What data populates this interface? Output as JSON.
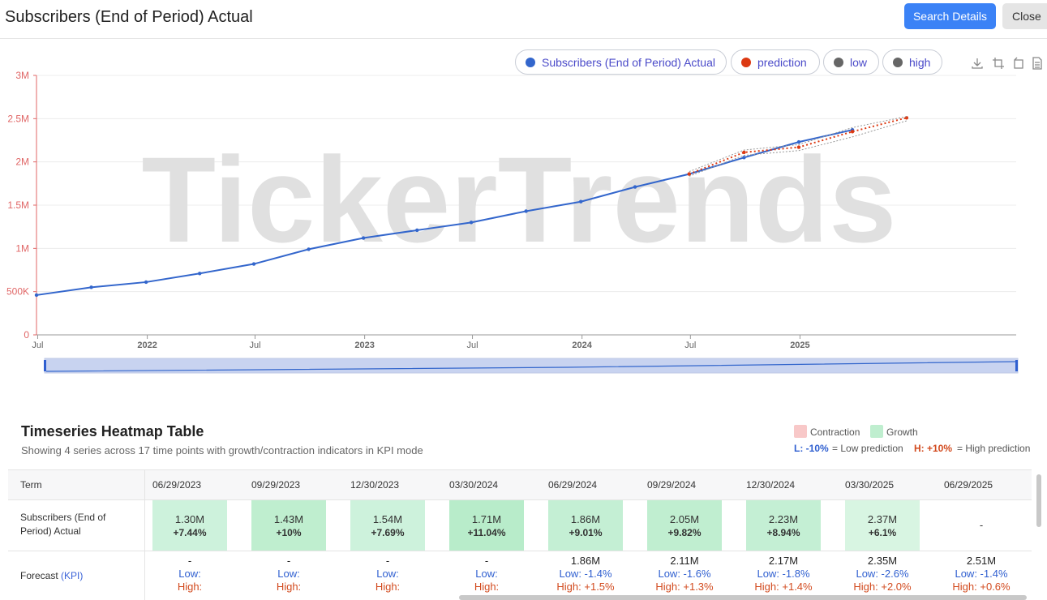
{
  "header": {
    "title": "Subscribers (End of Period) Actual",
    "search_label": "Search Details",
    "close_label": "Close"
  },
  "legend": [
    {
      "label": "Subscribers (End of Period) Actual",
      "color": "#3366cc"
    },
    {
      "label": "prediction",
      "color": "#dc3912"
    },
    {
      "label": "low",
      "color": "#666666"
    },
    {
      "label": "high",
      "color": "#666666"
    }
  ],
  "toolbox": [
    "download-icon",
    "zoom-icon",
    "restore-icon",
    "data-view-icon"
  ],
  "watermark": "TickerTrends",
  "chart_data": {
    "type": "line",
    "y_tick_labels": [
      "0",
      "500K",
      "1M",
      "1.5M",
      "2M",
      "2.5M",
      "3M"
    ],
    "y_ticks": [
      0,
      500000,
      1000000,
      1500000,
      2000000,
      2500000,
      3000000
    ],
    "ylim": [
      0,
      3000000
    ],
    "x_range": [
      "2021-06-29",
      "2025-12-30"
    ],
    "x_tick_labels": [
      {
        "date": "2021-07-01",
        "label": "Jul"
      },
      {
        "date": "2022-01-01",
        "label": "2022"
      },
      {
        "date": "2022-07-01",
        "label": "Jul"
      },
      {
        "date": "2023-01-01",
        "label": "2023"
      },
      {
        "date": "2023-07-01",
        "label": "Jul"
      },
      {
        "date": "2024-01-01",
        "label": "2024"
      },
      {
        "date": "2024-07-01",
        "label": "Jul"
      },
      {
        "date": "2025-01-01",
        "label": "2025"
      }
    ],
    "series": [
      {
        "name": "Subscribers (End of Period) Actual",
        "color": "#3366cc",
        "x": [
          "2021-06-29",
          "2021-09-29",
          "2021-12-30",
          "2022-03-30",
          "2022-06-29",
          "2022-09-29",
          "2022-12-30",
          "2023-03-30",
          "2023-06-29",
          "2023-09-29",
          "2023-12-30",
          "2024-03-30",
          "2024-06-29",
          "2024-09-29",
          "2024-12-30",
          "2025-03-30"
        ],
        "values": [
          460000,
          550000,
          610000,
          710000,
          820000,
          990000,
          1120000,
          1210000,
          1300000,
          1430000,
          1540000,
          1710000,
          1860000,
          2050000,
          2230000,
          2370000
        ]
      },
      {
        "name": "prediction",
        "color": "#dc3912",
        "x": [
          "2024-06-29",
          "2024-09-29",
          "2024-12-30",
          "2025-03-30",
          "2025-06-29"
        ],
        "values": [
          1860000,
          2110000,
          2170000,
          2350000,
          2510000
        ]
      },
      {
        "name": "low",
        "color": "#999999",
        "x": [
          "2024-06-29",
          "2024-09-29",
          "2024-12-30",
          "2025-03-30",
          "2025-06-29"
        ],
        "values": [
          1834000,
          2076000,
          2131000,
          2289000,
          2475000
        ]
      },
      {
        "name": "high",
        "color": "#999999",
        "x": [
          "2024-06-29",
          "2024-09-29",
          "2024-12-30",
          "2025-03-30",
          "2025-06-29"
        ],
        "values": [
          1888000,
          2137000,
          2200000,
          2397000,
          2525000
        ]
      }
    ]
  },
  "heatmap": {
    "title": "Timeseries Heatmap Table",
    "subtitle": "Showing 4 series across 17 time points with growth/contraction indicators in KPI mode",
    "key": {
      "contraction": "Contraction",
      "growth": "Growth",
      "low_tag": "L: -10%",
      "low_text": "= Low prediction",
      "high_tag": "H: +10%",
      "high_text": "= High prediction"
    },
    "term_label": "Term",
    "columns": [
      "06/29/2023",
      "09/29/2023",
      "12/30/2023",
      "03/30/2024",
      "06/29/2024",
      "09/29/2024",
      "12/30/2024",
      "03/30/2025",
      "06/29/2025"
    ],
    "row1_label_a": "Subscribers (End of",
    "row1_label_b": "Period) Actual",
    "actual": [
      {
        "v": "1.30M",
        "p": "+7.44%",
        "color": "#cdf2dc"
      },
      {
        "v": "1.43M",
        "p": "+10%",
        "color": "#bfeecf"
      },
      {
        "v": "1.54M",
        "p": "+7.69%",
        "color": "#cdf2dc"
      },
      {
        "v": "1.71M",
        "p": "+11.04%",
        "color": "#b8ecca"
      },
      {
        "v": "1.86M",
        "p": "+9.01%",
        "color": "#c4efd4"
      },
      {
        "v": "2.05M",
        "p": "+9.82%",
        "color": "#c0eed0"
      },
      {
        "v": "2.23M",
        "p": "+8.94%",
        "color": "#c4efd4"
      },
      {
        "v": "2.37M",
        "p": "+6.1%",
        "color": "#d8f5e2"
      },
      {
        "v": "-",
        "p": "",
        "color": "#ffffff"
      }
    ],
    "row2_label": "Forecast",
    "row2_tag": "(KPI)",
    "low_label": "Low:",
    "high_label": "High:",
    "forecast": [
      {
        "v": "-",
        "low": "",
        "high": ""
      },
      {
        "v": "-",
        "low": "",
        "high": ""
      },
      {
        "v": "-",
        "low": "",
        "high": ""
      },
      {
        "v": "-",
        "low": "",
        "high": ""
      },
      {
        "v": "1.86M",
        "low": "-1.4%",
        "high": "+1.5%"
      },
      {
        "v": "2.11M",
        "low": "-1.6%",
        "high": "+1.3%"
      },
      {
        "v": "2.17M",
        "low": "-1.8%",
        "high": "+1.4%"
      },
      {
        "v": "2.35M",
        "low": "-2.6%",
        "high": "+2.0%"
      },
      {
        "v": "2.51M",
        "low": "-1.4%",
        "high": "+0.6%"
      }
    ]
  }
}
